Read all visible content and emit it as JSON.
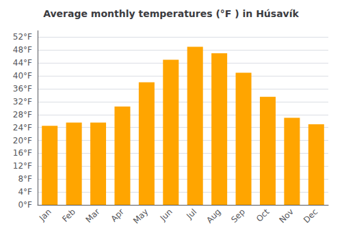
{
  "chart_data": {
    "type": "bar",
    "title": "Average monthly temperatures (°F ) in Húsavík",
    "categories": [
      "Jan",
      "Feb",
      "Mar",
      "Apr",
      "May",
      "Jun",
      "Jul",
      "Aug",
      "Sep",
      "Oct",
      "Nov",
      "Dec"
    ],
    "values": [
      24.5,
      25.5,
      25.5,
      30.5,
      38.0,
      45.0,
      49.0,
      47.0,
      41.0,
      33.5,
      27.0,
      25.0
    ],
    "color": "#FFA500",
    "ylim": [
      0,
      54
    ],
    "yticks": [
      {
        "value": 0,
        "label": "0°F"
      },
      {
        "value": 4,
        "label": "4°F"
      },
      {
        "value": 8,
        "label": "8°F"
      },
      {
        "value": 12,
        "label": "12°F"
      },
      {
        "value": 16,
        "label": "16°F"
      },
      {
        "value": 20,
        "label": "20°F"
      },
      {
        "value": 24,
        "label": "24°F"
      },
      {
        "value": 28,
        "label": "28°F"
      },
      {
        "value": 32,
        "label": "32°F"
      },
      {
        "value": 36,
        "label": "36°F"
      },
      {
        "value": 40,
        "label": "40°F"
      },
      {
        "value": 44,
        "label": "44°F"
      },
      {
        "value": 48,
        "label": "48°F"
      },
      {
        "value": 52,
        "label": "52°F"
      }
    ],
    "grid": true
  }
}
